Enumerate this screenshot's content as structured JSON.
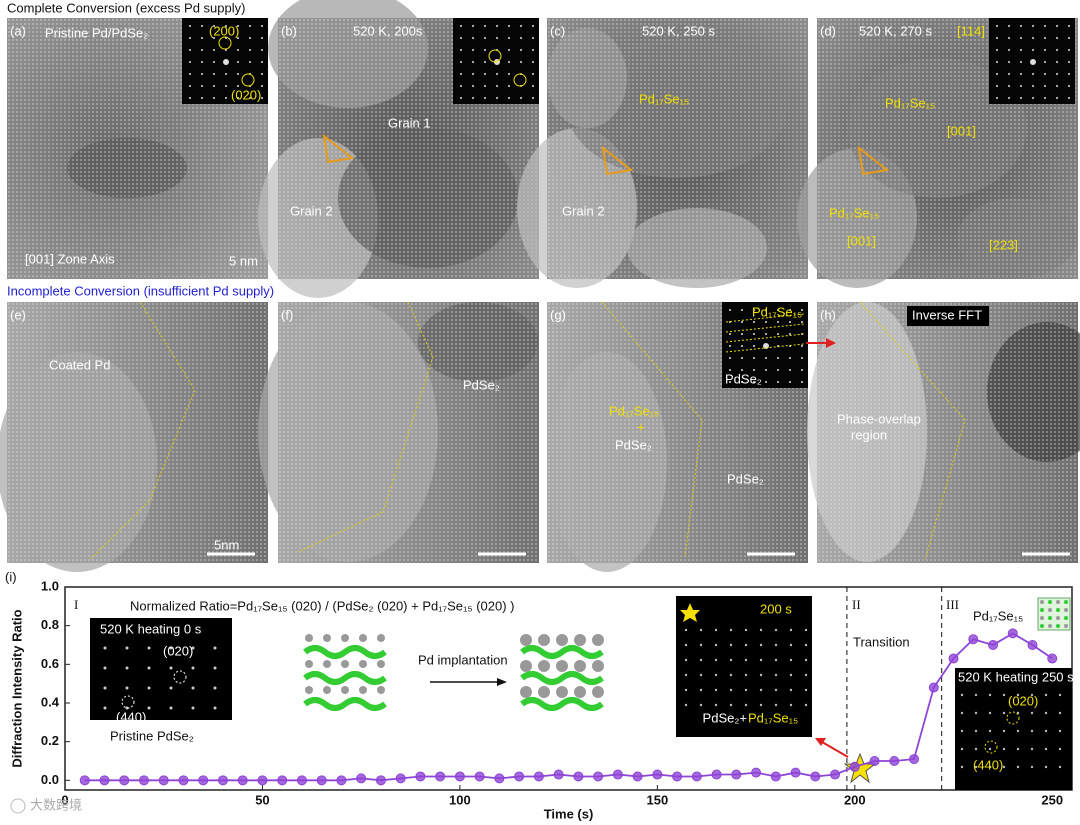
{
  "figure": {
    "row_titles": [
      "Complete Conversion (excess Pd supply)",
      "Incomplete Conversion (insufficient Pd supply)"
    ],
    "panels": [
      {
        "label": "(a)",
        "texts": [
          "Pristine Pd/PdSe₂",
          "(200)",
          "(020)",
          "[001] Zone Axis",
          "5 nm"
        ]
      },
      {
        "label": "(b)",
        "texts": [
          "520 K, 200s",
          "Grain 1",
          "Grain 2"
        ]
      },
      {
        "label": "(c)",
        "texts": [
          "520 K, 250 s",
          "Pd₁₇Se₁₅",
          "Grain 2"
        ]
      },
      {
        "label": "(d)",
        "texts": [
          "520 K, 270 s",
          "[114]",
          "Pd₁₇Se₁₅",
          "[001]",
          "Pd₁₇Se₁₅",
          "[001]",
          "[223]"
        ]
      },
      {
        "label": "(e)",
        "texts": [
          "Coated Pd",
          "5nm"
        ]
      },
      {
        "label": "(f)",
        "texts": [
          "PdSe₂"
        ]
      },
      {
        "label": "(g)",
        "texts": [
          "Pd₁₇Se₁₅",
          "PdSe₂",
          "Pd₁₇Se₁₅",
          "+",
          "PdSe₂",
          "PdSe₂"
        ]
      },
      {
        "label": "(h)",
        "texts": [
          "Inverse FFT",
          "Phase-overlap",
          "region"
        ]
      }
    ],
    "watermark": "大数跨境"
  },
  "chart_data": {
    "type": "line",
    "panel_label": "(i)",
    "x_label": "Time (s)",
    "y_label": "Diffraction Intensity Ratio",
    "x": [
      5,
      10,
      15,
      20,
      25,
      30,
      35,
      40,
      45,
      50,
      55,
      60,
      65,
      70,
      75,
      80,
      85,
      90,
      95,
      100,
      105,
      110,
      115,
      120,
      125,
      130,
      135,
      140,
      145,
      150,
      155,
      160,
      165,
      170,
      175,
      180,
      185,
      190,
      195,
      200,
      205,
      210,
      215,
      220,
      225,
      230,
      235,
      240,
      245,
      250
    ],
    "series": [
      {
        "color": "#8e44d6",
        "values": [
          0.0,
          0.0,
          0.0,
          0.0,
          0.0,
          0.0,
          0.0,
          0.0,
          0.0,
          0.0,
          0.0,
          0.0,
          0.0,
          0.0,
          0.01,
          0.0,
          0.01,
          0.02,
          0.02,
          0.02,
          0.02,
          0.01,
          0.02,
          0.02,
          0.03,
          0.02,
          0.02,
          0.03,
          0.02,
          0.03,
          0.02,
          0.02,
          0.03,
          0.03,
          0.04,
          0.02,
          0.04,
          0.02,
          0.03,
          0.07,
          0.1,
          0.1,
          0.11,
          0.48,
          0.63,
          0.73,
          0.7,
          0.76,
          0.7,
          0.63
        ]
      }
    ],
    "xlim": [
      0,
      255
    ],
    "ylim": [
      -0.05,
      1.0
    ],
    "xticks": [
      0,
      50,
      100,
      150,
      200,
      250
    ],
    "yticks": [
      {
        "value": 0,
        "label": "0.0"
      },
      0.2,
      0.4,
      0.6,
      0.8,
      {
        "value": 1,
        "label": "1.0"
      }
    ],
    "region_boundaries": [
      198,
      222
    ],
    "annotations": {
      "regions": [
        "I",
        "II",
        "Transition",
        "III",
        "Pd₁₇Se₁₅"
      ],
      "formula": "Normalized Ratio=Pd₁₇Se₁₅ (020) / (PdSe₂ (020) + Pd₁₇Se₁₅ (020) )",
      "inset_0s": [
        "520 K heating 0 s",
        "(020)",
        "(440)",
        "Pristine PdSe₂"
      ],
      "schematic": "Pd implantation",
      "inset_200s": [
        "200 s",
        "PdSe₂+",
        "Pd₁₇Se₁₅"
      ],
      "inset_250s": [
        "520 K heating 250 s",
        "(020)",
        "(440)"
      ]
    }
  }
}
